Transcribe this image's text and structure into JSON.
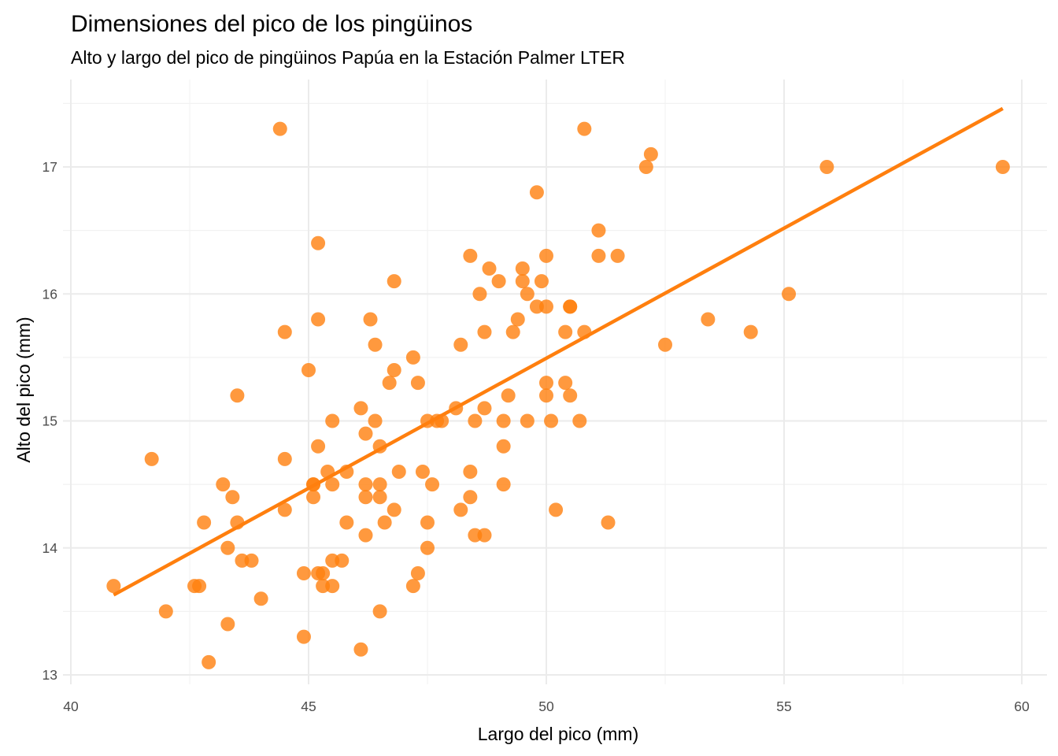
{
  "chart_data": {
    "type": "scatter",
    "title": "Dimensiones del pico de los pingüinos",
    "subtitle": "Alto y largo del pico de pingüinos Papúa en la Estación Palmer LTER",
    "xlabel": "Largo del pico (mm)",
    "ylabel": "Alto del pico (mm)",
    "xlim": [
      40,
      60
    ],
    "ylim": [
      13,
      17
    ],
    "x_ticks": [
      "40",
      "45",
      "50",
      "55",
      "60"
    ],
    "y_ticks": [
      "13",
      "14",
      "15",
      "16",
      "17"
    ],
    "grid": true,
    "legend": "none",
    "colors": {
      "point": "#ff7f0e",
      "line": "#ff7f0e"
    },
    "series": [
      {
        "points": [
          [
            40.9,
            13.7
          ],
          [
            41.7,
            14.7
          ],
          [
            42.0,
            13.5
          ],
          [
            42.6,
            13.7
          ],
          [
            42.7,
            13.7
          ],
          [
            42.8,
            14.2
          ],
          [
            42.9,
            13.1
          ],
          [
            43.2,
            14.5
          ],
          [
            43.3,
            14.0
          ],
          [
            43.3,
            13.4
          ],
          [
            43.4,
            14.4
          ],
          [
            43.5,
            15.2
          ],
          [
            43.5,
            14.2
          ],
          [
            43.6,
            13.9
          ],
          [
            43.8,
            13.9
          ],
          [
            44.0,
            13.6
          ],
          [
            44.4,
            17.3
          ],
          [
            44.5,
            15.7
          ],
          [
            44.5,
            14.7
          ],
          [
            44.5,
            14.3
          ],
          [
            44.9,
            13.8
          ],
          [
            44.9,
            13.3
          ],
          [
            45.0,
            15.4
          ],
          [
            45.1,
            14.5
          ],
          [
            45.1,
            14.5
          ],
          [
            45.1,
            14.4
          ],
          [
            45.2,
            16.4
          ],
          [
            45.2,
            15.8
          ],
          [
            45.2,
            14.8
          ],
          [
            45.2,
            13.8
          ],
          [
            45.3,
            13.8
          ],
          [
            45.3,
            13.7
          ],
          [
            45.4,
            14.6
          ],
          [
            45.5,
            15.0
          ],
          [
            45.5,
            14.5
          ],
          [
            45.5,
            13.9
          ],
          [
            45.5,
            13.7
          ],
          [
            45.7,
            13.9
          ],
          [
            45.8,
            14.6
          ],
          [
            45.8,
            14.2
          ],
          [
            46.1,
            15.1
          ],
          [
            46.1,
            13.2
          ],
          [
            46.2,
            14.9
          ],
          [
            46.2,
            14.5
          ],
          [
            46.2,
            14.4
          ],
          [
            46.2,
            14.1
          ],
          [
            46.3,
            15.8
          ],
          [
            46.4,
            15.6
          ],
          [
            46.4,
            15.0
          ],
          [
            46.5,
            14.8
          ],
          [
            46.5,
            14.5
          ],
          [
            46.5,
            14.4
          ],
          [
            46.5,
            13.5
          ],
          [
            46.6,
            14.2
          ],
          [
            46.7,
            15.3
          ],
          [
            46.8,
            16.1
          ],
          [
            46.8,
            15.4
          ],
          [
            46.8,
            14.3
          ],
          [
            46.9,
            14.6
          ],
          [
            47.2,
            15.5
          ],
          [
            47.2,
            13.7
          ],
          [
            47.3,
            15.3
          ],
          [
            47.3,
            13.8
          ],
          [
            47.4,
            14.6
          ],
          [
            47.5,
            15.0
          ],
          [
            47.5,
            14.2
          ],
          [
            47.5,
            14.0
          ],
          [
            47.6,
            14.5
          ],
          [
            47.7,
            15.0
          ],
          [
            47.8,
            15.0
          ],
          [
            48.1,
            15.1
          ],
          [
            48.2,
            15.6
          ],
          [
            48.2,
            14.3
          ],
          [
            48.4,
            16.3
          ],
          [
            48.4,
            14.6
          ],
          [
            48.4,
            14.4
          ],
          [
            48.5,
            15.0
          ],
          [
            48.5,
            14.1
          ],
          [
            48.6,
            16.0
          ],
          [
            48.7,
            15.7
          ],
          [
            48.7,
            15.1
          ],
          [
            48.7,
            14.1
          ],
          [
            48.8,
            16.2
          ],
          [
            49.0,
            16.1
          ],
          [
            49.1,
            15.0
          ],
          [
            49.1,
            14.8
          ],
          [
            49.1,
            14.5
          ],
          [
            49.2,
            15.2
          ],
          [
            49.3,
            15.7
          ],
          [
            49.4,
            15.8
          ],
          [
            49.5,
            16.2
          ],
          [
            49.5,
            16.1
          ],
          [
            49.6,
            16.0
          ],
          [
            49.6,
            15.0
          ],
          [
            49.8,
            16.8
          ],
          [
            49.8,
            15.9
          ],
          [
            49.9,
            16.1
          ],
          [
            50.0,
            16.3
          ],
          [
            50.0,
            15.9
          ],
          [
            50.0,
            15.3
          ],
          [
            50.0,
            15.2
          ],
          [
            50.1,
            15.0
          ],
          [
            50.2,
            14.3
          ],
          [
            50.4,
            15.7
          ],
          [
            50.4,
            15.3
          ],
          [
            50.5,
            15.9
          ],
          [
            50.5,
            15.9
          ],
          [
            50.5,
            15.2
          ],
          [
            50.7,
            15.0
          ],
          [
            50.8,
            17.3
          ],
          [
            50.8,
            15.7
          ],
          [
            51.1,
            16.5
          ],
          [
            51.1,
            16.3
          ],
          [
            51.3,
            14.2
          ],
          [
            51.5,
            16.3
          ],
          [
            52.1,
            17.0
          ],
          [
            52.2,
            17.1
          ],
          [
            52.5,
            15.6
          ],
          [
            53.4,
            15.8
          ],
          [
            54.3,
            15.7
          ],
          [
            55.1,
            16.0
          ],
          [
            55.9,
            17.0
          ],
          [
            59.6,
            17.0
          ]
        ]
      }
    ],
    "trend_line": {
      "x": [
        40.9,
        59.6
      ],
      "y": [
        13.63,
        17.46
      ]
    }
  }
}
